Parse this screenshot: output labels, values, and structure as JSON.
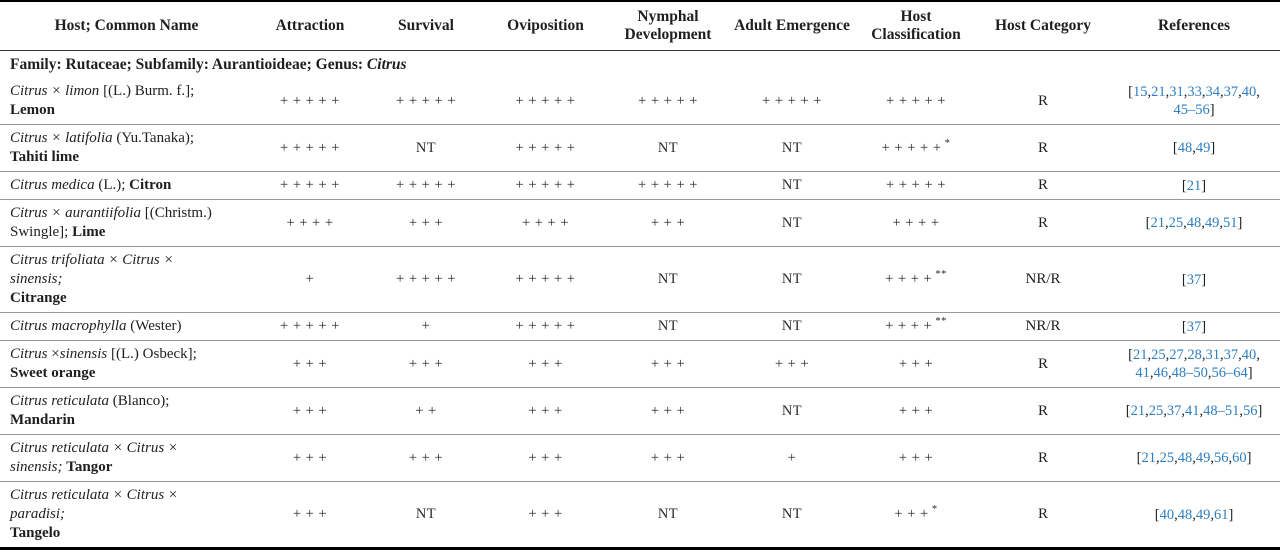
{
  "table": {
    "columns": [
      "Host; Common Name",
      "Attraction",
      "Survival",
      "Oviposition",
      "Nymphal Development",
      "Adult Emergence",
      "Host Classification",
      "Host Category",
      "References"
    ],
    "family": {
      "prefix": "Family: Rutaceae; Subfamily: Aurantioideae; Genus: ",
      "genus": "Citrus"
    },
    "colors": {
      "link_blue": "#2e7fc1",
      "text": "#1f1f1f",
      "row_divider": "#999999",
      "outer_border": "#000000"
    },
    "legend": {
      "not_tested": "NT",
      "resistant": "R",
      "non_resistant_resistant": "NR/R"
    },
    "rows": [
      {
        "host": [
          {
            "t": "Citrus × limon",
            "s": "i"
          },
          {
            "t": " [(L.) Burm. f.];",
            "s": "n"
          },
          {
            "s": "br"
          },
          {
            "t": "Lemon",
            "s": "b"
          }
        ],
        "attraction": "+ + + + +",
        "survival": "+ + + + +",
        "oviposition": "+ + + + +",
        "nymphal_development": "+ + + + +",
        "adult_emergence": "+ + + + +",
        "classification": "+ + + + +",
        "classification_note": "",
        "category": "R",
        "references": [
          "[15,21,31,33,34,37,40,",
          "45–56]"
        ]
      },
      {
        "host": [
          {
            "t": "Citrus × latifolia",
            "s": "i"
          },
          {
            "t": " (Yu.Tanaka);",
            "s": "n"
          },
          {
            "s": "br"
          },
          {
            "t": "Tahiti lime",
            "s": "b"
          }
        ],
        "attraction": "+ + + + +",
        "survival": "NT",
        "oviposition": "+ + + + +",
        "nymphal_development": "NT",
        "adult_emergence": "NT",
        "classification": "+ + + + +",
        "classification_note": "*",
        "category": "R",
        "references": [
          "[48,49]"
        ]
      },
      {
        "host": [
          {
            "t": "Citrus medica",
            "s": "i"
          },
          {
            "t": " (L.); ",
            "s": "n"
          },
          {
            "t": "Citron",
            "s": "b"
          }
        ],
        "attraction": "+ + + + +",
        "survival": "+ + + + +",
        "oviposition": "+ + + + +",
        "nymphal_development": "+ + + + +",
        "adult_emergence": "NT",
        "classification": "+ + + + +",
        "classification_note": "",
        "category": "R",
        "references": [
          "[21]"
        ]
      },
      {
        "host": [
          {
            "t": "Citrus × aurantiifolia",
            "s": "i"
          },
          {
            "t": " [(Christm.)",
            "s": "n"
          },
          {
            "s": "br"
          },
          {
            "t": "Swingle]; ",
            "s": "n"
          },
          {
            "t": "Lime",
            "s": "b"
          }
        ],
        "attraction": "+ + + +",
        "survival": "+ + +",
        "oviposition": "+ + + +",
        "nymphal_development": "+ + +",
        "adult_emergence": "NT",
        "classification": "+ + + +",
        "classification_note": "",
        "category": "R",
        "references": [
          "[21,25,48,49,51]"
        ]
      },
      {
        "host": [
          {
            "t": "Citrus trifoliata × Citrus ×",
            "s": "i"
          },
          {
            "s": "br"
          },
          {
            "t": "sinensis;",
            "s": "i"
          },
          {
            "s": "br"
          },
          {
            "t": "Citrange",
            "s": "b"
          }
        ],
        "attraction": "+",
        "survival": "+ + + + +",
        "oviposition": "+ + + + +",
        "nymphal_development": "NT",
        "adult_emergence": "NT",
        "classification": "+ + + +",
        "classification_note": "**",
        "category": "NR/R",
        "references": [
          "[37]"
        ]
      },
      {
        "host": [
          {
            "t": "Citrus macrophylla",
            "s": "i"
          },
          {
            "t": " (Wester)",
            "s": "n"
          }
        ],
        "attraction": "+ + + + +",
        "survival": "+",
        "oviposition": "+ + + + +",
        "nymphal_development": "NT",
        "adult_emergence": "NT",
        "classification": "+ + + +",
        "classification_note": "**",
        "category": "NR/R",
        "references": [
          "[37]"
        ]
      },
      {
        "host": [
          {
            "t": "Citrus",
            "s": "i"
          },
          {
            "t": " ×",
            "s": "n"
          },
          {
            "t": "sinensis",
            "s": "i"
          },
          {
            "t": " [(L.) Osbeck];",
            "s": "n"
          },
          {
            "s": "br"
          },
          {
            "t": "Sweet orange",
            "s": "b"
          }
        ],
        "attraction": "+ + +",
        "survival": "+ + +",
        "oviposition": "+ + +",
        "nymphal_development": "+ + +",
        "adult_emergence": "+ + +",
        "classification": "+ + +",
        "classification_note": "",
        "category": "R",
        "references": [
          "[21,25,27,28,31,37,40,",
          "41,46,48–50,56–64]"
        ]
      },
      {
        "host": [
          {
            "t": "Citrus reticulata",
            "s": "i"
          },
          {
            "t": " (Blanco);",
            "s": "n"
          },
          {
            "s": "br"
          },
          {
            "t": "Mandarin",
            "s": "b"
          }
        ],
        "attraction": "+ + +",
        "survival": "+ +",
        "oviposition": "+ + +",
        "nymphal_development": "+ + +",
        "adult_emergence": "NT",
        "classification": "+ + +",
        "classification_note": "",
        "category": "R",
        "references": [
          "[21,25,37,41,48–51,56]"
        ]
      },
      {
        "host": [
          {
            "t": "Citrus reticulata × Citrus ×",
            "s": "i"
          },
          {
            "s": "br"
          },
          {
            "t": "sinensis; ",
            "s": "i"
          },
          {
            "t": "Tangor",
            "s": "b"
          }
        ],
        "attraction": "+ + +",
        "survival": "+ + +",
        "oviposition": "+ + +",
        "nymphal_development": "+ + +",
        "adult_emergence": "+",
        "classification": "+ + +",
        "classification_note": "",
        "category": "R",
        "references": [
          "[21,25,48,49,56,60]"
        ]
      },
      {
        "host": [
          {
            "t": "Citrus reticulata × Citrus ×",
            "s": "i"
          },
          {
            "s": "br"
          },
          {
            "t": "paradisi;",
            "s": "i"
          },
          {
            "s": "br"
          },
          {
            "t": "Tangelo",
            "s": "b"
          }
        ],
        "attraction": "+ + +",
        "survival": "NT",
        "oviposition": "+ + +",
        "nymphal_development": "NT",
        "adult_emergence": "NT",
        "classification": "+ + +",
        "classification_note": "*",
        "category": "R",
        "references": [
          "[40,48,49,61]"
        ]
      }
    ]
  }
}
